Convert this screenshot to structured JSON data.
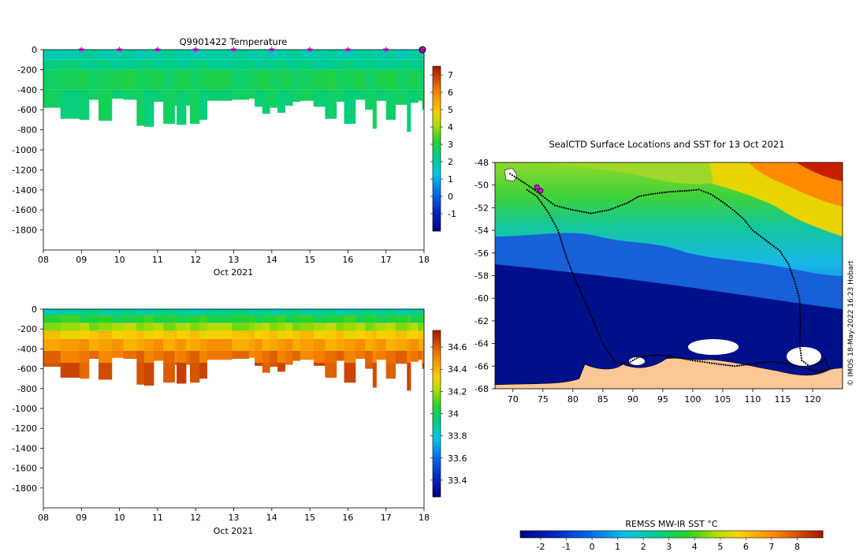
{
  "chart_data": [
    {
      "id": "temperature_section",
      "type": "heatmap",
      "title": "Q9901422  Temperature",
      "xlabel": "Oct 2021",
      "x_ticks": [
        "08",
        "09",
        "10",
        "11",
        "12",
        "13",
        "14",
        "15",
        "16",
        "17",
        "18"
      ],
      "x_range_days": [
        8,
        18
      ],
      "ylim": [
        -2000,
        0
      ],
      "y_ticks": [
        "0",
        "-200",
        "-400",
        "-600",
        "-800",
        "-1000",
        "-1200",
        "-1400",
        "-1600",
        "-1800"
      ],
      "colorbar": {
        "min": -2,
        "max": 7.5,
        "ticks": [
          "-1",
          "0",
          "1",
          "2",
          "3",
          "4",
          "5",
          "6",
          "7"
        ]
      },
      "surface_marker_days": [
        9,
        10,
        11,
        12,
        13,
        14,
        15,
        16,
        17
      ],
      "profiles": [
        {
          "day": 8.0,
          "depth": 580
        },
        {
          "day": 8.45,
          "depth": 690
        },
        {
          "day": 8.95,
          "depth": 700
        },
        {
          "day": 9.2,
          "depth": 500
        },
        {
          "day": 9.45,
          "depth": 710
        },
        {
          "day": 9.8,
          "depth": 490
        },
        {
          "day": 10.1,
          "depth": 500
        },
        {
          "day": 10.45,
          "depth": 760
        },
        {
          "day": 10.65,
          "depth": 770
        },
        {
          "day": 10.9,
          "depth": 520
        },
        {
          "day": 11.15,
          "depth": 740
        },
        {
          "day": 11.45,
          "depth": 560
        },
        {
          "day": 11.5,
          "depth": 750
        },
        {
          "day": 11.75,
          "depth": 560
        },
        {
          "day": 11.85,
          "depth": 740
        },
        {
          "day": 12.1,
          "depth": 700
        },
        {
          "day": 12.3,
          "depth": 510
        },
        {
          "day": 12.95,
          "depth": 500
        },
        {
          "day": 13.4,
          "depth": 490
        },
        {
          "day": 13.55,
          "depth": 570
        },
        {
          "day": 13.75,
          "depth": 640
        },
        {
          "day": 13.95,
          "depth": 580
        },
        {
          "day": 14.15,
          "depth": 630
        },
        {
          "day": 14.35,
          "depth": 560
        },
        {
          "day": 14.55,
          "depth": 520
        },
        {
          "day": 14.75,
          "depth": 510
        },
        {
          "day": 15.1,
          "depth": 570
        },
        {
          "day": 15.4,
          "depth": 690
        },
        {
          "day": 15.7,
          "depth": 520
        },
        {
          "day": 15.9,
          "depth": 740
        },
        {
          "day": 16.2,
          "depth": 500
        },
        {
          "day": 16.45,
          "depth": 600
        },
        {
          "day": 16.65,
          "depth": 790
        },
        {
          "day": 16.75,
          "depth": 510
        },
        {
          "day": 17.0,
          "depth": 700
        },
        {
          "day": 17.25,
          "depth": 550
        },
        {
          "day": 17.55,
          "depth": 820
        },
        {
          "day": 17.65,
          "depth": 530
        },
        {
          "day": 17.85,
          "depth": 510
        },
        {
          "day": 17.95,
          "depth": 600
        }
      ],
      "layers": [
        {
          "from": 0,
          "to": 100,
          "value": 2.0
        },
        {
          "from": 100,
          "to": 200,
          "value": 2.3
        },
        {
          "from": 200,
          "to": 400,
          "value": 2.8
        },
        {
          "from": 400,
          "to": 900,
          "value": 2.6
        }
      ]
    },
    {
      "id": "salinity_section",
      "type": "heatmap",
      "title": "",
      "xlabel": "Oct 2021",
      "x_ticks": [
        "08",
        "09",
        "10",
        "11",
        "12",
        "13",
        "14",
        "15",
        "16",
        "17",
        "18"
      ],
      "x_range_days": [
        8,
        18
      ],
      "ylim": [
        -2000,
        0
      ],
      "y_ticks": [
        "0",
        "-200",
        "-400",
        "-600",
        "-800",
        "-1000",
        "-1200",
        "-1400",
        "-1600",
        "-1800"
      ],
      "colorbar": {
        "min": 33.25,
        "max": 34.75,
        "ticks": [
          "33.4",
          "33.6",
          "33.8",
          "34",
          "34.2",
          "34.4",
          "34.6"
        ]
      },
      "layers": [
        {
          "from": 0,
          "to": 60,
          "value": 33.9
        },
        {
          "from": 60,
          "to": 140,
          "value": 34.05
        },
        {
          "from": 140,
          "to": 220,
          "value": 34.2
        },
        {
          "from": 220,
          "to": 300,
          "value": 34.35
        },
        {
          "from": 300,
          "to": 420,
          "value": 34.45
        },
        {
          "from": 420,
          "to": 540,
          "value": 34.55
        },
        {
          "from": 540,
          "to": 900,
          "value": 34.62
        }
      ]
    },
    {
      "id": "sst_map",
      "type": "heatmap",
      "title": "SealCTD Surface Locations and SST for 13 Oct 2021",
      "x_ticks": [
        "70",
        "75",
        "80",
        "85",
        "90",
        "95",
        "100",
        "105",
        "110",
        "115",
        "120"
      ],
      "xlim": [
        67,
        125
      ],
      "y_ticks": [
        "-48",
        "-50",
        "-52",
        "-54",
        "-56",
        "-58",
        "-60",
        "-62",
        "-64",
        "-66",
        "-68"
      ],
      "ylim": [
        -68,
        -48
      ],
      "colorbar": {
        "label": "REMSS MW-IR SST °C",
        "min": -2.8,
        "max": 9.0,
        "ticks": [
          "-2",
          "-1",
          "0",
          "1",
          "2",
          "3",
          "4",
          "5",
          "6",
          "7",
          "8"
        ]
      },
      "credit": "© IMOS 18-May-2022 16:23 Hobart",
      "highlight_positions": [
        {
          "lon": 74.0,
          "lat": -50.2
        },
        {
          "lon": 74.6,
          "lat": -50.5
        }
      ],
      "track": [
        [
          69.5,
          -49.0
        ],
        [
          71,
          -49.5
        ],
        [
          73,
          -50.2
        ],
        [
          75,
          -51.0
        ],
        [
          77,
          -51.8
        ],
        [
          80,
          -52.2
        ],
        [
          83,
          -52.5
        ],
        [
          86,
          -52.2
        ],
        [
          89,
          -51.6
        ],
        [
          91,
          -51.0
        ],
        [
          93,
          -50.8
        ],
        [
          96,
          -50.6
        ],
        [
          99,
          -50.5
        ],
        [
          101,
          -50.4
        ],
        [
          103,
          -50.8
        ],
        [
          105,
          -51.5
        ],
        [
          107,
          -52.3
        ],
        [
          108.5,
          -53.0
        ],
        [
          110,
          -54.0
        ],
        [
          112,
          -54.8
        ],
        [
          114.5,
          -55.8
        ],
        [
          116,
          -57.0
        ],
        [
          117,
          -58.5
        ],
        [
          117.8,
          -60.0
        ],
        [
          118,
          -62.0
        ],
        [
          117.8,
          -64.0
        ],
        [
          118.2,
          -65.5
        ],
        [
          119.5,
          -66.0
        ],
        [
          121,
          -65.8
        ],
        [
          122,
          -65.4
        ],
        [
          122.8,
          -66.2
        ],
        [
          121,
          -66.5
        ],
        [
          119,
          -66.2
        ],
        [
          116,
          -65.8
        ],
        [
          113,
          -65.6
        ],
        [
          110,
          -65.8
        ],
        [
          107,
          -66.0
        ],
        [
          104,
          -65.8
        ],
        [
          100,
          -65.5
        ],
        [
          97,
          -65.2
        ],
        [
          94,
          -65.0
        ],
        [
          91,
          -65.2
        ],
        [
          89,
          -65.8
        ],
        [
          87,
          -65.6
        ],
        [
          85,
          -64.0
        ],
        [
          83,
          -61.5
        ],
        [
          80.5,
          -58.5
        ],
        [
          79,
          -56.5
        ],
        [
          77.5,
          -54.0
        ],
        [
          76,
          -52.5
        ],
        [
          74,
          -51.0
        ],
        [
          72,
          -50.3
        ]
      ]
    }
  ]
}
